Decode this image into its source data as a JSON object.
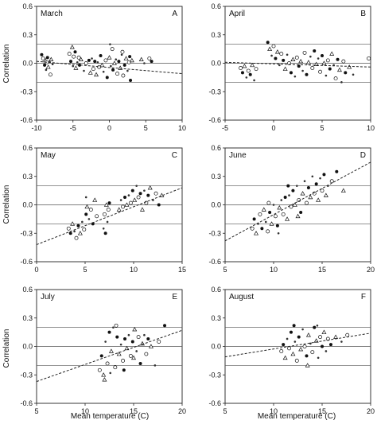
{
  "figure": {
    "ylabel": "Correlation",
    "xlabel": "Mean temperature (C)"
  },
  "chart_data": [
    {
      "type": "scatter",
      "panel": "A",
      "month": "March",
      "xlim": [
        -10,
        10
      ],
      "ylim": [
        -0.6,
        0.6
      ],
      "xticks": [
        "-10",
        "-5",
        "0",
        "5",
        "10"
      ],
      "yticks": [
        "-0.6",
        "-0.3",
        "0.0",
        "0.3",
        "0.6"
      ],
      "reference_lines": [
        -0.2,
        0.0,
        0.2
      ],
      "fit_line": {
        "x": [
          -10,
          10
        ],
        "y": [
          0.02,
          -0.11
        ]
      },
      "points": [
        [
          -9.1,
          0.05
        ],
        [
          -8.9,
          -0.02
        ],
        [
          -8.8,
          0.03
        ],
        [
          -8.7,
          -0.07
        ],
        [
          -8.6,
          0.01
        ],
        [
          -8.5,
          0.06
        ],
        [
          -8.4,
          -0.04
        ],
        [
          -8.2,
          0.02
        ],
        [
          -8.1,
          -0.12
        ],
        [
          -9.3,
          0.09
        ],
        [
          -8.0,
          0.04
        ],
        [
          -7.8,
          -0.01
        ],
        [
          -5.5,
          0.1
        ],
        [
          -5.3,
          0.02
        ],
        [
          -5.1,
          0.17
        ],
        [
          -5.0,
          -0.03
        ],
        [
          -4.9,
          0.07
        ],
        [
          -4.7,
          0.12
        ],
        [
          -4.6,
          -0.05
        ],
        [
          -4.4,
          0.01
        ],
        [
          -4.2,
          0.06
        ],
        [
          -4.1,
          -0.02
        ],
        [
          -3.9,
          0.04
        ],
        [
          -3.5,
          -0.08
        ],
        [
          -3.2,
          0.0
        ],
        [
          -2.8,
          0.03
        ],
        [
          -2.6,
          -0.1
        ],
        [
          -2.4,
          0.05
        ],
        [
          -2.2,
          -0.06
        ],
        [
          -2.0,
          0.02
        ],
        [
          -1.8,
          -0.12
        ],
        [
          -1.6,
          0.01
        ],
        [
          -1.4,
          -0.04
        ],
        [
          -1.2,
          0.08
        ],
        [
          -1.0,
          -0.02
        ],
        [
          -0.8,
          -0.09
        ],
        [
          -0.5,
          0.03
        ],
        [
          -0.3,
          -0.15
        ],
        [
          0.0,
          0.06
        ],
        [
          0.2,
          -0.03
        ],
        [
          0.4,
          0.15
        ],
        [
          0.5,
          -0.07
        ],
        [
          0.7,
          0.0
        ],
        [
          0.9,
          0.04
        ],
        [
          1.1,
          -0.11
        ],
        [
          1.3,
          0.02
        ],
        [
          1.5,
          -0.05
        ],
        [
          1.7,
          0.09
        ],
        [
          1.9,
          -0.13
        ],
        [
          2.1,
          -0.02
        ],
        [
          2.3,
          0.05
        ],
        [
          2.5,
          -0.08
        ],
        [
          2.7,
          0.01
        ],
        [
          2.9,
          -0.18
        ],
        [
          3.1,
          0.03
        ],
        [
          0.1,
          0.2
        ],
        [
          1.8,
          0.12
        ],
        [
          2.8,
          0.07
        ],
        [
          4.4,
          0.04
        ],
        [
          4.8,
          0.0
        ],
        [
          5.5,
          0.05
        ],
        [
          5.8,
          0.02
        ]
      ]
    },
    {
      "type": "scatter",
      "panel": "B",
      "month": "April",
      "xlim": [
        -5,
        10
      ],
      "ylim": [
        -0.6,
        0.6
      ],
      "xticks": [
        "-5",
        "0",
        "5",
        "10"
      ],
      "yticks": [
        "-0.6",
        "-0.3",
        "0.0",
        "0.3",
        "0.6"
      ],
      "reference_lines": [
        -0.2,
        0.0,
        0.2
      ],
      "fit_line": {
        "x": [
          -5,
          10
        ],
        "y": [
          0.01,
          -0.04
        ]
      },
      "points": [
        [
          -3.4,
          -0.05
        ],
        [
          -3.2,
          -0.1
        ],
        [
          -3.0,
          -0.03
        ],
        [
          -2.8,
          -0.15
        ],
        [
          -2.6,
          -0.08
        ],
        [
          -2.4,
          -0.12
        ],
        [
          -2.2,
          -0.02
        ],
        [
          -2.0,
          -0.18
        ],
        [
          -1.8,
          -0.06
        ],
        [
          -0.6,
          0.22
        ],
        [
          -0.4,
          0.15
        ],
        [
          -0.2,
          0.08
        ],
        [
          0.0,
          0.18
        ],
        [
          0.2,
          0.05
        ],
        [
          0.4,
          0.12
        ],
        [
          0.6,
          -0.02
        ],
        [
          0.8,
          0.1
        ],
        [
          1.0,
          0.03
        ],
        [
          1.2,
          -0.06
        ],
        [
          1.4,
          0.09
        ],
        [
          1.6,
          0.0
        ],
        [
          1.8,
          -0.1
        ],
        [
          2.0,
          0.04
        ],
        [
          2.2,
          -0.14
        ],
        [
          2.4,
          0.06
        ],
        [
          2.6,
          -0.03
        ],
        [
          2.8,
          0.02
        ],
        [
          3.0,
          -0.08
        ],
        [
          3.2,
          0.11
        ],
        [
          3.4,
          -0.12
        ],
        [
          3.6,
          0.01
        ],
        [
          3.8,
          0.07
        ],
        [
          4.0,
          -0.05
        ],
        [
          4.2,
          0.13
        ],
        [
          4.4,
          -0.01
        ],
        [
          4.6,
          0.05
        ],
        [
          4.8,
          -0.09
        ],
        [
          5.0,
          0.08
        ],
        [
          5.2,
          0.0
        ],
        [
          5.4,
          -0.13
        ],
        [
          5.6,
          0.03
        ],
        [
          5.8,
          -0.06
        ],
        [
          6.0,
          0.1
        ],
        [
          6.2,
          -0.02
        ],
        [
          6.4,
          -0.16
        ],
        [
          6.6,
          0.04
        ],
        [
          6.8,
          -0.07
        ],
        [
          7.0,
          -0.2
        ],
        [
          7.2,
          0.02
        ],
        [
          7.4,
          -0.1
        ],
        [
          7.8,
          -0.04
        ],
        [
          8.2,
          -0.12
        ],
        [
          9.8,
          0.05
        ]
      ]
    },
    {
      "type": "scatter",
      "panel": "C",
      "month": "May",
      "xlim": [
        0,
        15
      ],
      "ylim": [
        -0.6,
        0.6
      ],
      "xticks": [
        "0",
        "5",
        "10",
        "15"
      ],
      "yticks": [
        "-0.6",
        "-0.3",
        "0.0",
        "0.3",
        "0.6"
      ],
      "reference_lines": [
        -0.2,
        0.0,
        0.2
      ],
      "fit_line": {
        "x": [
          0,
          15
        ],
        "y": [
          -0.42,
          0.18
        ]
      },
      "points": [
        [
          3.3,
          -0.25
        ],
        [
          3.5,
          -0.3
        ],
        [
          3.7,
          -0.2
        ],
        [
          3.9,
          -0.28
        ],
        [
          4.1,
          -0.35
        ],
        [
          4.3,
          -0.22
        ],
        [
          4.5,
          -0.3
        ],
        [
          4.7,
          -0.18
        ],
        [
          4.9,
          -0.26
        ],
        [
          5.1,
          -0.1
        ],
        [
          5.2,
          -0.02
        ],
        [
          5.4,
          -0.15
        ],
        [
          5.6,
          -0.05
        ],
        [
          5.8,
          -0.2
        ],
        [
          6.0,
          0.05
        ],
        [
          6.9,
          -0.25
        ],
        [
          7.0,
          -0.1
        ],
        [
          7.1,
          -0.3
        ],
        [
          7.2,
          0.0
        ],
        [
          7.3,
          -0.18
        ],
        [
          7.4,
          -0.05
        ],
        [
          7.5,
          0.02
        ],
        [
          8.5,
          -0.05
        ],
        [
          8.7,
          0.05
        ],
        [
          8.9,
          -0.02
        ],
        [
          9.1,
          0.08
        ],
        [
          9.3,
          0.0
        ],
        [
          9.5,
          0.1
        ],
        [
          9.7,
          0.02
        ],
        [
          9.9,
          0.15
        ],
        [
          10.1,
          0.05
        ],
        [
          10.3,
          0.2
        ],
        [
          10.5,
          0.08
        ],
        [
          10.7,
          0.12
        ],
        [
          10.9,
          -0.05
        ],
        [
          11.1,
          0.15
        ],
        [
          11.3,
          0.02
        ],
        [
          11.5,
          0.1
        ],
        [
          11.7,
          0.18
        ],
        [
          12.0,
          0.05
        ],
        [
          12.3,
          0.12
        ],
        [
          12.6,
          0.0
        ],
        [
          12.9,
          0.1
        ],
        [
          5.1,
          0.08
        ],
        [
          6.2,
          -0.12
        ]
      ]
    },
    {
      "type": "scatter",
      "panel": "D",
      "month": "June",
      "xlim": [
        5,
        20
      ],
      "ylim": [
        -0.6,
        0.6
      ],
      "xticks": [
        "5",
        "10",
        "15",
        "20"
      ],
      "yticks": [
        "-0.6",
        "-0.3",
        "0.0",
        "0.3",
        "0.6"
      ],
      "reference_lines": [
        -0.2,
        0.0,
        0.2
      ],
      "fit_line": {
        "x": [
          5,
          20
        ],
        "y": [
          -0.38,
          0.45
        ]
      },
      "points": [
        [
          7.8,
          -0.25
        ],
        [
          8.0,
          -0.15
        ],
        [
          8.2,
          -0.3
        ],
        [
          8.4,
          -0.2
        ],
        [
          8.6,
          -0.1
        ],
        [
          8.8,
          -0.25
        ],
        [
          9.0,
          -0.05
        ],
        [
          9.2,
          -0.18
        ],
        [
          9.4,
          -0.28
        ],
        [
          9.6,
          -0.08
        ],
        [
          9.8,
          -0.2
        ],
        [
          10.0,
          0.0
        ],
        [
          10.2,
          -0.12
        ],
        [
          10.4,
          -0.22
        ],
        [
          10.6,
          -0.03
        ],
        [
          10.8,
          0.05
        ],
        [
          11.0,
          -0.1
        ],
        [
          11.2,
          0.08
        ],
        [
          11.4,
          -0.15
        ],
        [
          11.6,
          0.1
        ],
        [
          11.8,
          -0.02
        ],
        [
          12.0,
          0.15
        ],
        [
          12.2,
          0.0
        ],
        [
          12.4,
          0.2
        ],
        [
          12.6,
          0.05
        ],
        [
          12.8,
          -0.08
        ],
        [
          13.0,
          0.12
        ],
        [
          13.2,
          0.25
        ],
        [
          13.4,
          0.02
        ],
        [
          13.6,
          0.18
        ],
        [
          13.8,
          0.08
        ],
        [
          14.0,
          0.3
        ],
        [
          14.2,
          0.12
        ],
        [
          14.4,
          0.22
        ],
        [
          14.6,
          0.05
        ],
        [
          14.8,
          0.28
        ],
        [
          15.0,
          0.15
        ],
        [
          15.2,
          0.32
        ],
        [
          15.4,
          0.1
        ],
        [
          15.6,
          0.2
        ],
        [
          16.0,
          0.25
        ],
        [
          16.5,
          0.35
        ],
        [
          17.2,
          0.15
        ],
        [
          10.5,
          -0.3
        ],
        [
          9.5,
          0.02
        ],
        [
          11.5,
          0.2
        ],
        [
          12.5,
          -0.12
        ]
      ]
    },
    {
      "type": "scatter",
      "panel": "E",
      "month": "July",
      "xlim": [
        5,
        20
      ],
      "ylim": [
        -0.6,
        0.6
      ],
      "xticks": [
        "5",
        "10",
        "15",
        "20"
      ],
      "yticks": [
        "-0.6",
        "-0.3",
        "0.0",
        "0.3",
        "0.6"
      ],
      "reference_lines": [
        -0.2,
        0.0,
        0.2
      ],
      "fit_line": {
        "x": [
          5,
          20
        ],
        "y": [
          -0.37,
          0.17
        ]
      },
      "points": [
        [
          11.5,
          -0.25
        ],
        [
          11.7,
          -0.1
        ],
        [
          11.9,
          -0.3
        ],
        [
          12.1,
          0.05
        ],
        [
          12.3,
          -0.18
        ],
        [
          12.5,
          0.15
        ],
        [
          12.7,
          -0.05
        ],
        [
          12.9,
          0.2
        ],
        [
          13.1,
          -0.22
        ],
        [
          13.3,
          0.1
        ],
        [
          13.5,
          -0.08
        ],
        [
          13.7,
          0.02
        ],
        [
          13.9,
          -0.15
        ],
        [
          14.1,
          0.08
        ],
        [
          14.3,
          -0.02
        ],
        [
          14.5,
          0.12
        ],
        [
          14.7,
          -0.1
        ],
        [
          14.9,
          0.05
        ],
        [
          15.1,
          0.18
        ],
        [
          15.3,
          -0.05
        ],
        [
          15.5,
          0.1
        ],
        [
          15.7,
          -0.18
        ],
        [
          15.9,
          0.03
        ],
        [
          16.1,
          0.12
        ],
        [
          16.3,
          -0.08
        ],
        [
          16.5,
          0.08
        ],
        [
          16.8,
          0.0
        ],
        [
          17.2,
          -0.2
        ],
        [
          17.6,
          0.05
        ],
        [
          18.2,
          0.22
        ],
        [
          12.0,
          -0.35
        ],
        [
          12.6,
          -0.28
        ],
        [
          13.2,
          0.22
        ],
        [
          14.0,
          -0.25
        ],
        [
          15.0,
          -0.12
        ]
      ]
    },
    {
      "type": "scatter",
      "panel": "F",
      "month": "August",
      "xlim": [
        5,
        20
      ],
      "ylim": [
        -0.6,
        0.6
      ],
      "xticks": [
        "5",
        "10",
        "15",
        "20"
      ],
      "yticks": [
        "-0.6",
        "-0.3",
        "0.0",
        "0.3",
        "0.6"
      ],
      "reference_lines": [
        -0.2,
        0.0,
        0.2
      ],
      "fit_line": {
        "x": [
          5,
          20
        ],
        "y": [
          -0.11,
          0.14
        ]
      },
      "points": [
        [
          10.8,
          -0.05
        ],
        [
          11.0,
          0.02
        ],
        [
          11.2,
          -0.12
        ],
        [
          11.4,
          0.08
        ],
        [
          11.6,
          -0.02
        ],
        [
          11.8,
          0.15
        ],
        [
          12.0,
          -0.08
        ],
        [
          12.2,
          0.05
        ],
        [
          12.4,
          -0.15
        ],
        [
          12.6,
          0.1
        ],
        [
          12.8,
          -0.03
        ],
        [
          13.0,
          0.18
        ],
        [
          13.2,
          0.0
        ],
        [
          13.4,
          -0.1
        ],
        [
          13.6,
          0.12
        ],
        [
          13.8,
          0.03
        ],
        [
          14.0,
          -0.06
        ],
        [
          14.2,
          0.2
        ],
        [
          14.4,
          0.06
        ],
        [
          14.6,
          -0.12
        ],
        [
          14.8,
          0.1
        ],
        [
          15.0,
          0.0
        ],
        [
          15.2,
          0.15
        ],
        [
          15.4,
          -0.05
        ],
        [
          15.6,
          0.08
        ],
        [
          15.9,
          0.02
        ],
        [
          16.4,
          0.1
        ],
        [
          17.0,
          0.05
        ],
        [
          17.6,
          0.12
        ],
        [
          12.1,
          0.22
        ],
        [
          13.5,
          -0.2
        ],
        [
          14.5,
          0.22
        ]
      ]
    }
  ]
}
